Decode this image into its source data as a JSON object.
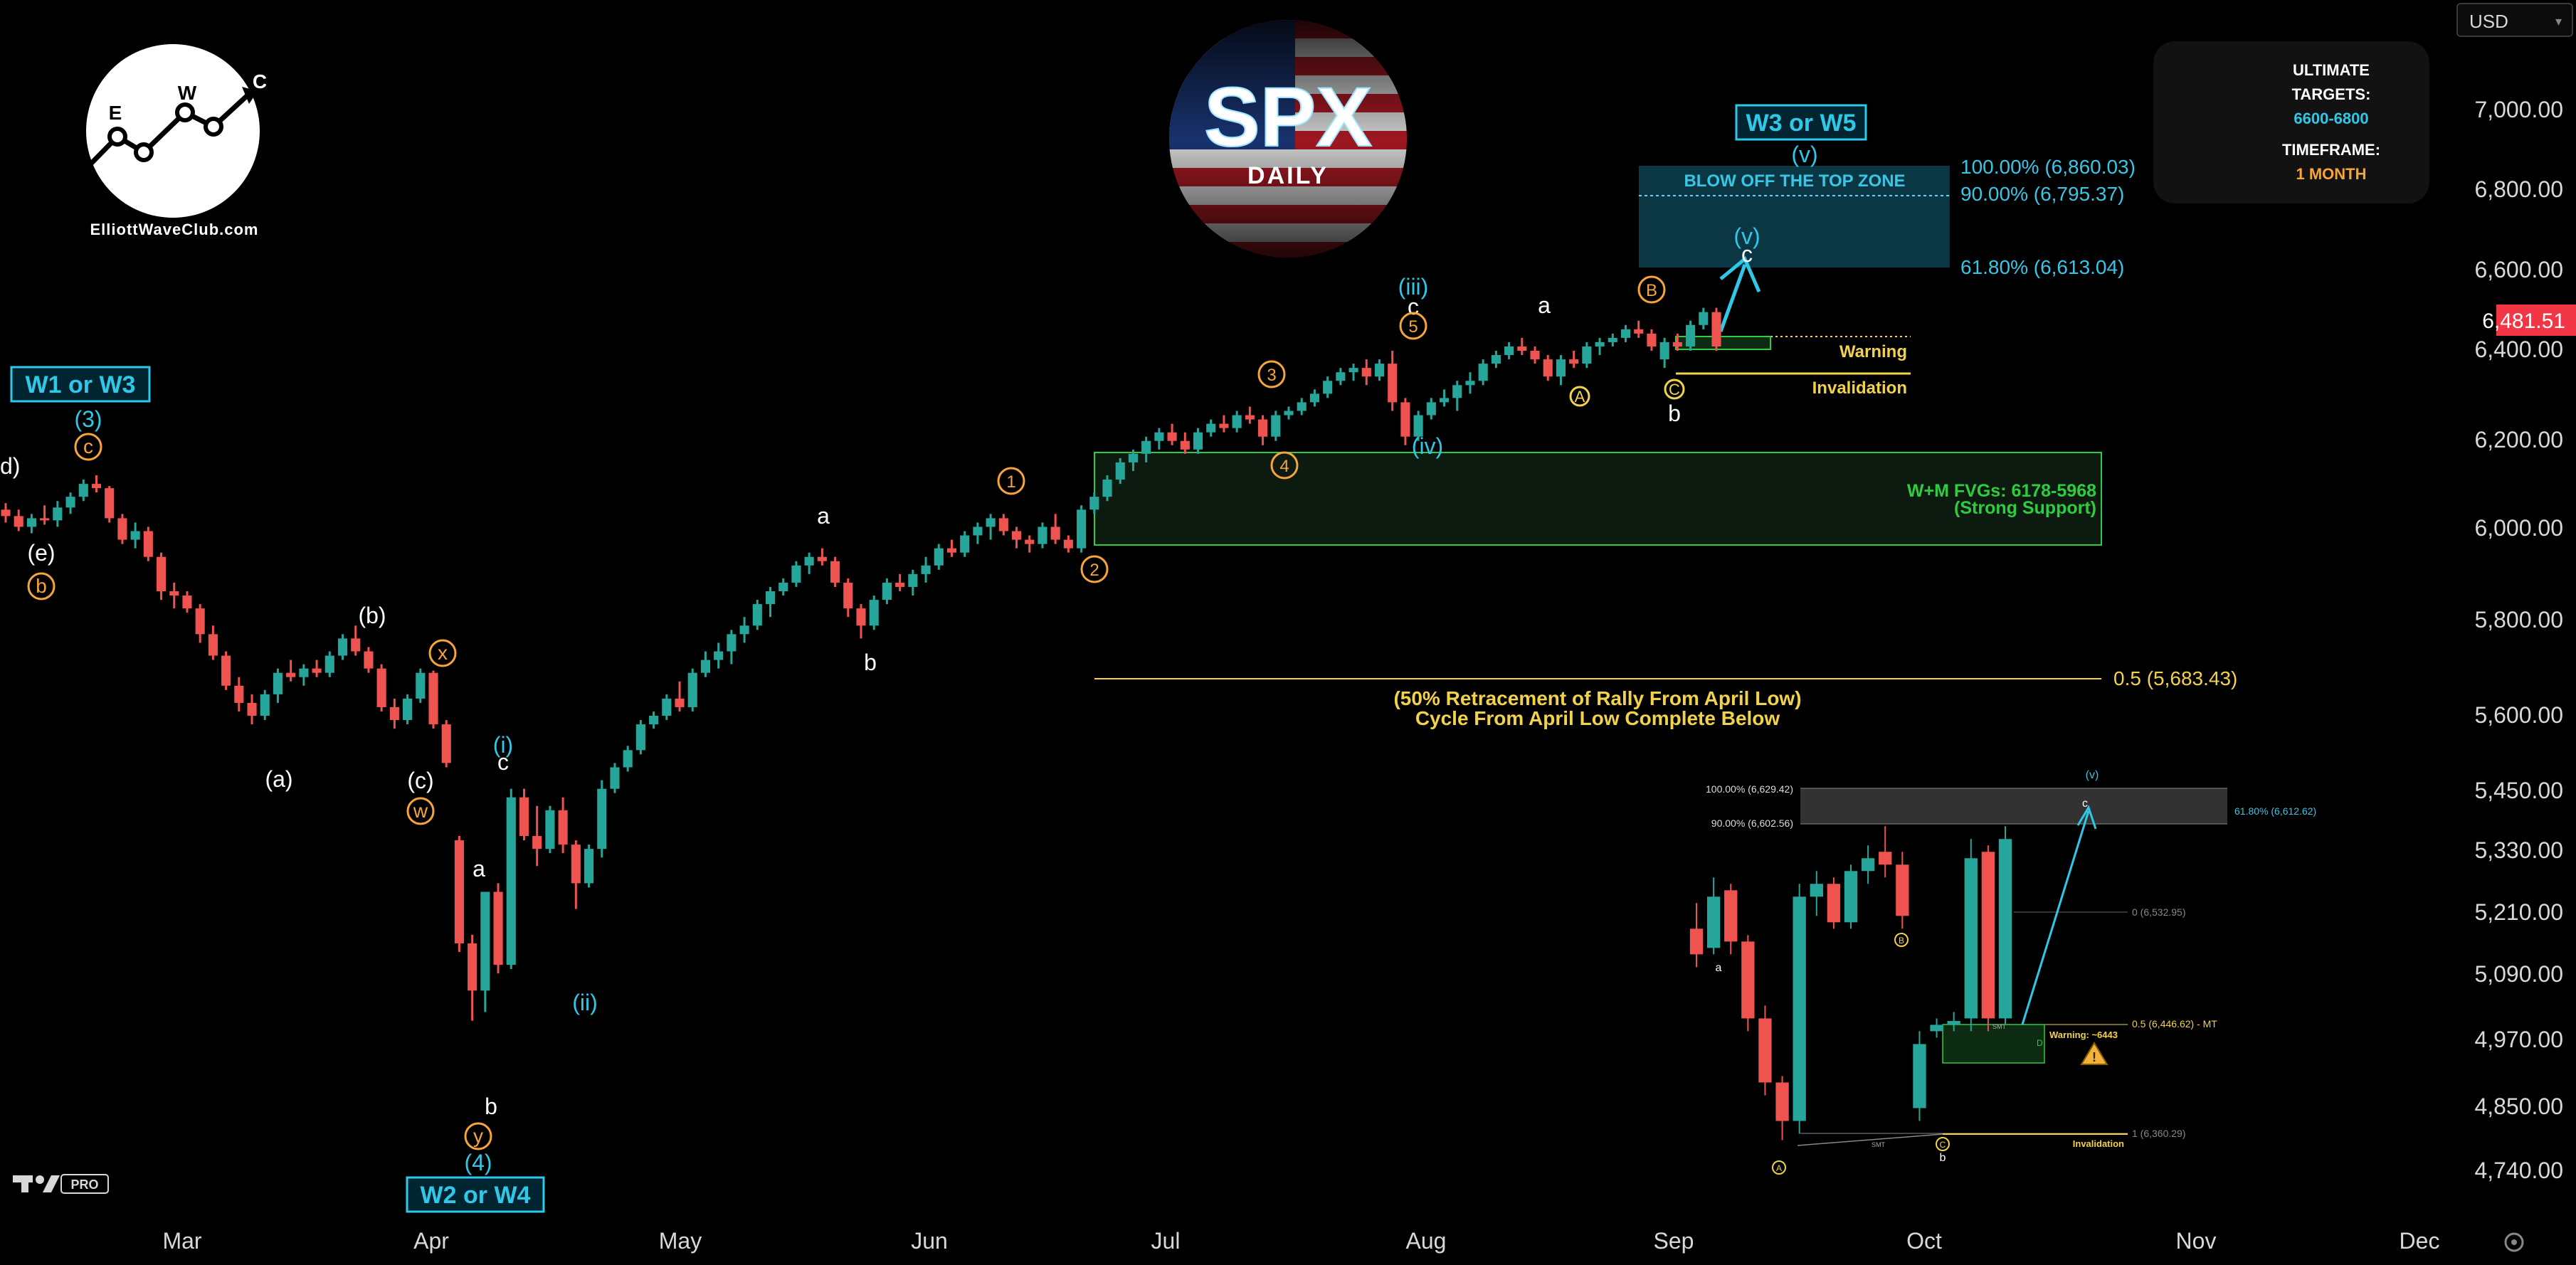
{
  "currency_selector": {
    "value": "USD"
  },
  "brand": {
    "site": "ElliottWaveClub.com",
    "logo_letters": [
      "E",
      "W",
      "C"
    ]
  },
  "badge": {
    "title": "SPX",
    "subtitle": "DAILY"
  },
  "targets_box": {
    "ultimate_label": "ULTIMATE",
    "targets_label": "TARGETS:",
    "targets_value": "6600-6800",
    "timeframe_label": "TIMEFRAME:",
    "timeframe_value": "1 MONTH",
    "icons": [
      "target-icon",
      "clock-icon"
    ]
  },
  "colors": {
    "background": "#000000",
    "up_candle": "#26a69a",
    "down_candle": "#ef5350",
    "cyan": "#2fc8e8",
    "orange": "#f7a53a",
    "yellow": "#f2d24b",
    "green_zone": "#2ecc40",
    "current_price_bg": "#f23645"
  },
  "chart_data": [
    {
      "type": "candlestick",
      "title": "SPX DAILY",
      "x_ticks": [
        "Mar",
        "Apr",
        "May",
        "Jun",
        "Jul",
        "Aug",
        "Sep",
        "Oct",
        "Nov",
        "Dec"
      ],
      "y_ticks": [
        "7,000.00",
        "6,800.00",
        "6,600.00",
        "6,400.00",
        "6,200.00",
        "6,000.00",
        "5,800.00",
        "5,600.00",
        "5,450.00",
        "5,330.00",
        "5,210.00",
        "5,090.00",
        "4,970.00",
        "4,850.00",
        "4,740.00"
      ],
      "y_tick_values": [
        7000,
        6800,
        6600,
        6400,
        6200,
        6000,
        5800,
        5600,
        5450,
        5330,
        5210,
        5090,
        4970,
        4850,
        4740
      ],
      "current_price": "6,481.51",
      "ohlc": [
        [
          6070,
          6085,
          6040,
          6055
        ],
        [
          6055,
          6070,
          6020,
          6030
        ],
        [
          6030,
          6060,
          6015,
          6050
        ],
        [
          6050,
          6080,
          6035,
          6045
        ],
        [
          6045,
          6090,
          6030,
          6075
        ],
        [
          6075,
          6110,
          6060,
          6100
        ],
        [
          6100,
          6140,
          6090,
          6130
        ],
        [
          6130,
          6150,
          6110,
          6120
        ],
        [
          6120,
          6125,
          6040,
          6050
        ],
        [
          6050,
          6060,
          5990,
          6000
        ],
        [
          6000,
          6040,
          5980,
          6020
        ],
        [
          6020,
          6030,
          5950,
          5960
        ],
        [
          5960,
          5970,
          5860,
          5880
        ],
        [
          5880,
          5900,
          5840,
          5870
        ],
        [
          5870,
          5880,
          5830,
          5840
        ],
        [
          5840,
          5850,
          5760,
          5780
        ],
        [
          5780,
          5800,
          5720,
          5730
        ],
        [
          5730,
          5740,
          5650,
          5660
        ],
        [
          5660,
          5680,
          5600,
          5620
        ],
        [
          5620,
          5640,
          5570,
          5590
        ],
        [
          5590,
          5650,
          5580,
          5640
        ],
        [
          5640,
          5700,
          5620,
          5690
        ],
        [
          5690,
          5720,
          5670,
          5680
        ],
        [
          5680,
          5710,
          5660,
          5700
        ],
        [
          5700,
          5720,
          5680,
          5690
        ],
        [
          5690,
          5740,
          5680,
          5730
        ],
        [
          5730,
          5780,
          5720,
          5770
        ],
        [
          5770,
          5800,
          5730,
          5740
        ],
        [
          5740,
          5750,
          5690,
          5700
        ],
        [
          5700,
          5710,
          5600,
          5610
        ],
        [
          5610,
          5630,
          5560,
          5580
        ],
        [
          5580,
          5640,
          5570,
          5630
        ],
        [
          5630,
          5700,
          5620,
          5690
        ],
        [
          5690,
          5695,
          5560,
          5570
        ],
        [
          5570,
          5580,
          5470,
          5480
        ],
        [
          5300,
          5310,
          5040,
          5060
        ],
        [
          5060,
          5080,
          4880,
          4950
        ],
        [
          4950,
          5180,
          4900,
          5180
        ],
        [
          5180,
          5200,
          4990,
          5010
        ],
        [
          5010,
          5420,
          5000,
          5400
        ],
        [
          5400,
          5420,
          5300,
          5310
        ],
        [
          5310,
          5380,
          5240,
          5280
        ],
        [
          5280,
          5380,
          5270,
          5370
        ],
        [
          5370,
          5400,
          5270,
          5290
        ],
        [
          5290,
          5300,
          5140,
          5200
        ],
        [
          5200,
          5290,
          5190,
          5280
        ],
        [
          5280,
          5440,
          5260,
          5420
        ],
        [
          5420,
          5480,
          5410,
          5470
        ],
        [
          5470,
          5520,
          5460,
          5510
        ],
        [
          5510,
          5580,
          5500,
          5570
        ],
        [
          5570,
          5600,
          5560,
          5590
        ],
        [
          5590,
          5640,
          5580,
          5630
        ],
        [
          5630,
          5670,
          5600,
          5610
        ],
        [
          5610,
          5700,
          5600,
          5690
        ],
        [
          5690,
          5740,
          5680,
          5720
        ],
        [
          5720,
          5760,
          5700,
          5740
        ],
        [
          5740,
          5790,
          5710,
          5780
        ],
        [
          5780,
          5820,
          5760,
          5800
        ],
        [
          5800,
          5860,
          5790,
          5850
        ],
        [
          5850,
          5890,
          5820,
          5880
        ],
        [
          5880,
          5910,
          5870,
          5900
        ],
        [
          5900,
          5950,
          5890,
          5940
        ],
        [
          5940,
          5970,
          5920,
          5960
        ],
        [
          5960,
          5980,
          5940,
          5950
        ],
        [
          5950,
          5960,
          5890,
          5900
        ],
        [
          5900,
          5910,
          5820,
          5840
        ],
        [
          5840,
          5850,
          5770,
          5800
        ],
        [
          5800,
          5870,
          5790,
          5860
        ],
        [
          5860,
          5910,
          5850,
          5900
        ],
        [
          5900,
          5920,
          5880,
          5890
        ],
        [
          5890,
          5930,
          5870,
          5920
        ],
        [
          5920,
          5960,
          5900,
          5940
        ],
        [
          5940,
          5990,
          5930,
          5980
        ],
        [
          5980,
          6000,
          5960,
          5970
        ],
        [
          5970,
          6020,
          5960,
          6010
        ],
        [
          6010,
          6040,
          5990,
          6030
        ],
        [
          6030,
          6060,
          6000,
          6050
        ],
        [
          6050,
          6060,
          6010,
          6020
        ],
        [
          6020,
          6030,
          5980,
          6000
        ],
        [
          6000,
          6010,
          5970,
          5990
        ],
        [
          5990,
          6040,
          5980,
          6030
        ],
        [
          6030,
          6060,
          5990,
          6000
        ],
        [
          6000,
          6010,
          5970,
          5980
        ],
        [
          5980,
          6080,
          5970,
          6070
        ],
        [
          6070,
          6110,
          6060,
          6100
        ],
        [
          6100,
          6150,
          6090,
          6140
        ],
        [
          6140,
          6190,
          6130,
          6180
        ],
        [
          6180,
          6210,
          6160,
          6200
        ],
        [
          6200,
          6240,
          6180,
          6230
        ],
        [
          6230,
          6260,
          6210,
          6250
        ],
        [
          6250,
          6270,
          6220,
          6230
        ],
        [
          6230,
          6250,
          6200,
          6210
        ],
        [
          6210,
          6260,
          6200,
          6250
        ],
        [
          6250,
          6280,
          6240,
          6270
        ],
        [
          6270,
          6290,
          6250,
          6260
        ],
        [
          6260,
          6300,
          6250,
          6290
        ],
        [
          6290,
          6310,
          6270,
          6280
        ],
        [
          6280,
          6290,
          6220,
          6240
        ],
        [
          6240,
          6300,
          6230,
          6290
        ],
        [
          6290,
          6310,
          6280,
          6300
        ],
        [
          6300,
          6330,
          6290,
          6320
        ],
        [
          6320,
          6350,
          6310,
          6340
        ],
        [
          6340,
          6380,
          6330,
          6370
        ],
        [
          6370,
          6400,
          6360,
          6390
        ],
        [
          6390,
          6410,
          6370,
          6400
        ],
        [
          6400,
          6420,
          6360,
          6380
        ],
        [
          6380,
          6420,
          6370,
          6410
        ],
        [
          6410,
          6440,
          6300,
          6320
        ],
        [
          6320,
          6330,
          6220,
          6240
        ],
        [
          6240,
          6300,
          6230,
          6290
        ],
        [
          6290,
          6330,
          6280,
          6320
        ],
        [
          6320,
          6350,
          6310,
          6330
        ],
        [
          6330,
          6370,
          6300,
          6360
        ],
        [
          6360,
          6390,
          6340,
          6370
        ],
        [
          6370,
          6420,
          6360,
          6410
        ],
        [
          6410,
          6440,
          6400,
          6430
        ],
        [
          6430,
          6460,
          6420,
          6450
        ],
        [
          6450,
          6470,
          6430,
          6440
        ],
        [
          6440,
          6450,
          6410,
          6420
        ],
        [
          6420,
          6430,
          6370,
          6380
        ],
        [
          6380,
          6430,
          6360,
          6420
        ],
        [
          6420,
          6440,
          6400,
          6410
        ],
        [
          6410,
          6460,
          6400,
          6450
        ],
        [
          6450,
          6470,
          6430,
          6460
        ],
        [
          6460,
          6480,
          6450,
          6470
        ],
        [
          6470,
          6500,
          6460,
          6490
        ],
        [
          6490,
          6510,
          6470,
          6480
        ],
        [
          6480,
          6490,
          6440,
          6450
        ],
        [
          6420,
          6470,
          6400,
          6460
        ],
        [
          6460,
          6480,
          6440,
          6450
        ],
        [
          6450,
          6510,
          6440,
          6500
        ],
        [
          6500,
          6540,
          6490,
          6530
        ],
        [
          6530,
          6540,
          6440,
          6450
        ]
      ],
      "projection_target": 6640,
      "fib_levels": [
        {
          "label": "100.00% (6,860.03)",
          "value": 6860.03
        },
        {
          "label": "90.00% (6,795.37)",
          "value": 6795.37
        },
        {
          "label": "61.80% (6,613.04)",
          "value": 6613.04
        },
        {
          "label": "0.5 (5,683.43)",
          "value": 5683.43
        }
      ],
      "zones": [
        {
          "label": "BLOW OFF THE TOP ZONE",
          "from": 6613.04,
          "to": 6860.03
        },
        {
          "label_line1": "W+M FVGs: 6178-5968",
          "label_line2": "(Strong Support)",
          "from": 5968,
          "to": 6178
        }
      ],
      "level_labels": {
        "warning": "Warning",
        "invalidation": "Invalidation",
        "warning_value": 6443,
        "invalidation_value": 6360
      },
      "retracement_note": {
        "line1": "(50% Retracement of Rally From April Low)",
        "line2": "Cycle From April Low Complete Below"
      },
      "wave_labels": {
        "box_left": "W1 or W3",
        "box_bottom": "W2 or W4",
        "box_right": "W3 or W5",
        "cyan": [
          "(3)",
          "(4)",
          "(i)",
          "(ii)",
          "(iii)",
          "(iv)",
          "(v)",
          "(v)"
        ],
        "white": [
          "d)",
          "(e)",
          "(a)",
          "(b)",
          "(c)",
          "a",
          "b",
          "c",
          "a",
          "b",
          "c",
          "a",
          "b",
          "c"
        ],
        "orange_circled": [
          "c",
          "b",
          "x",
          "w",
          "y",
          "1",
          "2",
          "3",
          "4",
          "5",
          "B"
        ],
        "yellow_circled": [
          "A",
          "C"
        ]
      }
    },
    {
      "type": "candlestick",
      "title": "",
      "ohlc": [
        [
          6520,
          6540,
          6490,
          6500
        ],
        [
          6505,
          6560,
          6500,
          6545
        ],
        [
          6550,
          6555,
          6500,
          6510
        ],
        [
          6510,
          6515,
          6440,
          6450
        ],
        [
          6450,
          6460,
          6390,
          6400
        ],
        [
          6400,
          6405,
          6355,
          6370
        ],
        [
          6370,
          6555,
          6360,
          6545
        ],
        [
          6545,
          6565,
          6530,
          6555
        ],
        [
          6555,
          6560,
          6520,
          6525
        ],
        [
          6525,
          6570,
          6520,
          6565
        ],
        [
          6565,
          6585,
          6555,
          6575
        ],
        [
          6580,
          6600,
          6560,
          6570
        ],
        [
          6570,
          6580,
          6520,
          6530
        ],
        [
          6380,
          6440,
          6370,
          6430
        ],
        [
          6440,
          6450,
          6435,
          6445
        ],
        [
          6445,
          6455,
          6440,
          6448
        ],
        [
          6450,
          6590,
          6440,
          6575
        ],
        [
          6580,
          6585,
          6440,
          6450
        ],
        [
          6450,
          6600,
          6445,
          6590
        ]
      ],
      "fib_levels": [
        {
          "label": "100.00% (6,629.42)",
          "value": 6629.42
        },
        {
          "label": "90.00% (6,602.56)",
          "value": 6602.56
        },
        {
          "label": "61.80% (6,612.62)",
          "value": 6612.62
        },
        {
          "label": "0 (6,532.95)",
          "value": 6532.95
        },
        {
          "label": "0.5 (6,446.62) - MT",
          "value": 6446.62
        },
        {
          "label": "1 (6,360.29)",
          "value": 6360.29
        }
      ],
      "level_labels": {
        "warning": "Warning: ~6443",
        "invalidation": "Invalidation",
        "smt_left": "SMT",
        "smt_right": "SMT",
        "fvg": "D"
      },
      "wave_labels": {
        "cyan": [
          "(v)"
        ],
        "white": [
          "a",
          "b",
          "c"
        ],
        "yellow_circled": [
          "A",
          "B",
          "C"
        ]
      }
    }
  ]
}
